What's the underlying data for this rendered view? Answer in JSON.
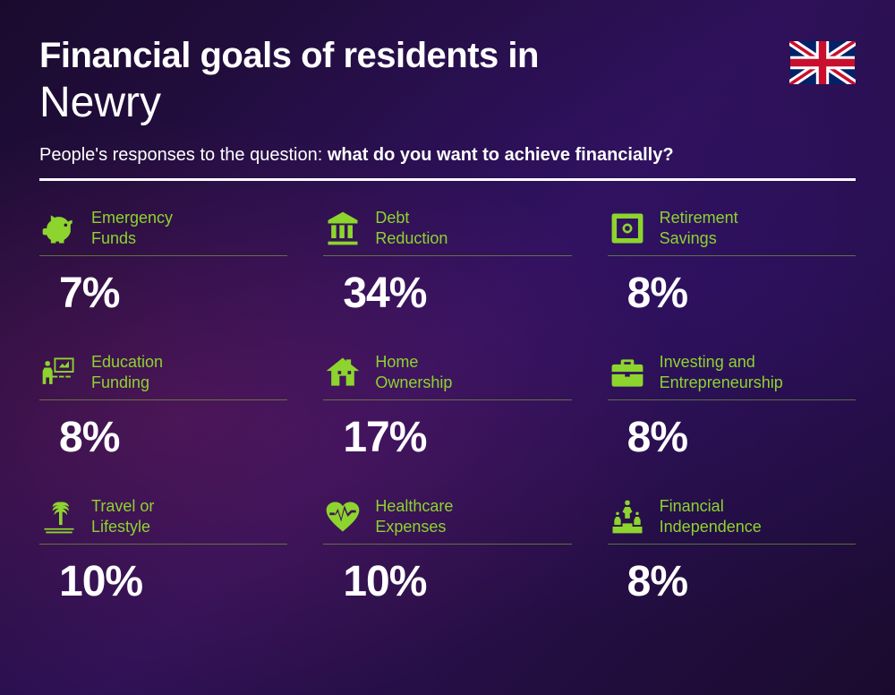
{
  "header": {
    "title_prefix": "Financial goals of residents in",
    "city": "Newry",
    "subtitle_lead": "People's responses to the question: ",
    "subtitle_bold": "what do you want to achieve financially?"
  },
  "accent_color": "#8dd42e",
  "text_color": "#ffffff",
  "items": [
    {
      "icon": "piggy-bank",
      "label": "Emergency\nFunds",
      "value": "7%"
    },
    {
      "icon": "bank",
      "label": "Debt\nReduction",
      "value": "34%"
    },
    {
      "icon": "safe",
      "label": "Retirement\nSavings",
      "value": "8%"
    },
    {
      "icon": "presentation",
      "label": "Education\nFunding",
      "value": "8%"
    },
    {
      "icon": "house",
      "label": "Home\nOwnership",
      "value": "17%"
    },
    {
      "icon": "briefcase",
      "label": "Investing and\nEntrepreneurship",
      "value": "8%"
    },
    {
      "icon": "palm",
      "label": "Travel or\nLifestyle",
      "value": "10%"
    },
    {
      "icon": "heart-pulse",
      "label": "Healthcare\nExpenses",
      "value": "10%"
    },
    {
      "icon": "podium",
      "label": "Financial\nIndependence",
      "value": "8%"
    }
  ]
}
